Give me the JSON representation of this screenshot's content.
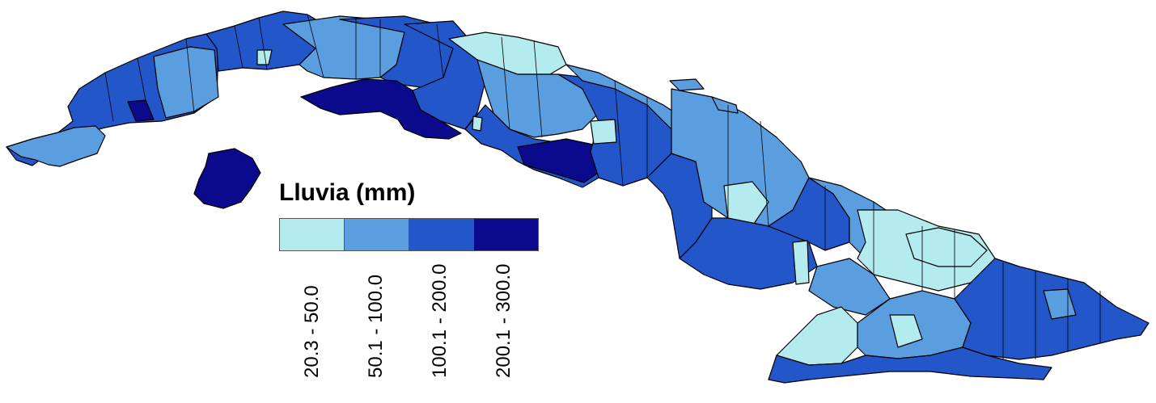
{
  "legend": {
    "title": "Lluvia (mm)",
    "classes": [
      {
        "label": "20.3 - 50.0",
        "color": "#b3ebee"
      },
      {
        "label": "50.1 - 100.0",
        "color": "#5b9ee0"
      },
      {
        "label": "100.1 - 200.0",
        "color": "#2356c8"
      },
      {
        "label": "200.1 - 300.0",
        "color": "#0b0a8c"
      }
    ]
  }
}
